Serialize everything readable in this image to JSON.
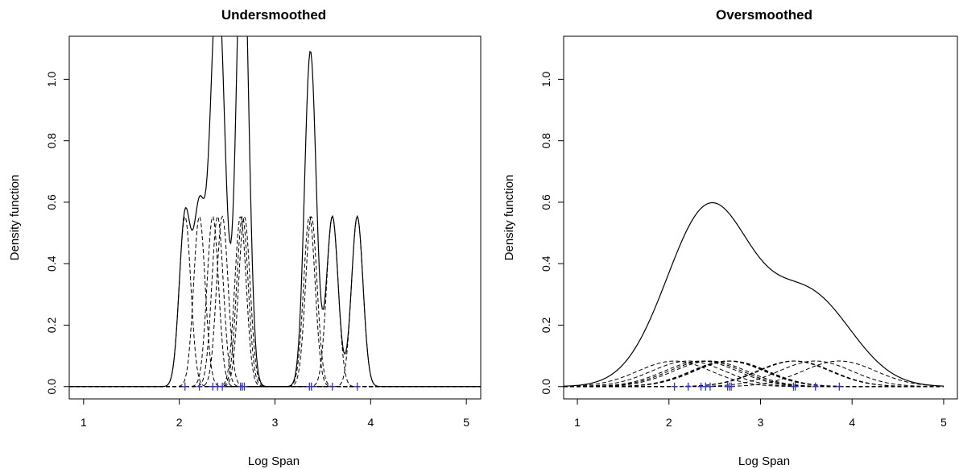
{
  "chart_data": [
    {
      "type": "line",
      "title": "Undersmoothed",
      "xlabel": "Log Span",
      "ylabel": "Density function",
      "xlim": [
        0.85,
        5.15
      ],
      "ylim": [
        -0.04,
        1.14
      ],
      "xticks": [
        "1",
        "2",
        "3",
        "4",
        "5"
      ],
      "yticks": [
        "0.0",
        "0.2",
        "0.4",
        "0.6",
        "0.8",
        "1.0"
      ],
      "bandwidth": 0.06,
      "observations": [
        2.06,
        2.21,
        2.35,
        2.4,
        2.45,
        2.64,
        2.66,
        2.68,
        3.36,
        3.38,
        3.6,
        3.86
      ],
      "series": [
        {
          "style": "solid",
          "values": "kernel density estimate (sum of kernels)"
        },
        {
          "style": "dashed",
          "values": "individual kernels"
        }
      ],
      "rug_color": "#3333cc",
      "grid": false
    },
    {
      "type": "line",
      "title": "Oversmoothed",
      "xlabel": "Log Span",
      "ylabel": "Density function",
      "xlim": [
        0.85,
        5.15
      ],
      "ylim": [
        -0.04,
        1.14
      ],
      "xticks": [
        "1",
        "2",
        "3",
        "4",
        "5"
      ],
      "yticks": [
        "0.0",
        "0.2",
        "0.4",
        "0.6",
        "0.8",
        "1.0"
      ],
      "bandwidth": 0.4,
      "observations": [
        2.06,
        2.21,
        2.35,
        2.4,
        2.45,
        2.64,
        2.66,
        2.68,
        3.36,
        3.38,
        3.6,
        3.86
      ],
      "series": [
        {
          "style": "solid",
          "values": "kernel density estimate (sum of kernels)"
        },
        {
          "style": "dashed",
          "values": "individual kernels"
        }
      ],
      "rug_color": "#3333cc",
      "grid": false
    }
  ]
}
